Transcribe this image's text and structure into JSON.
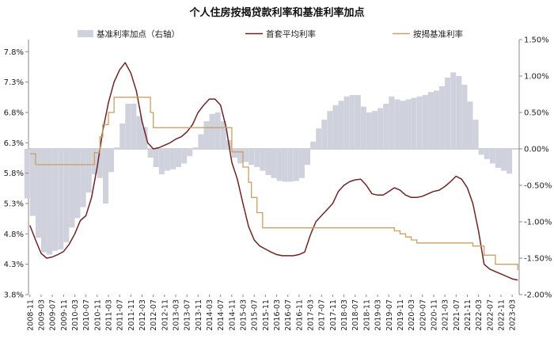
{
  "chart_data": {
    "type": "bar+line",
    "title": "个人住房按揭贷款利率和基准利率加点",
    "legend": {
      "placement": "top",
      "entries": [
        {
          "name": "基准利率加点（右轴）",
          "color": "#cfd2dd"
        },
        {
          "name": "首套平均利率",
          "color": "#6e2423"
        },
        {
          "name": "按揭基准利率",
          "color": "#c8a063"
        }
      ]
    },
    "y_left": {
      "range": [
        3.8,
        8.0
      ],
      "ticks": [
        "3.8%",
        "4.3%",
        "4.8%",
        "5.3%",
        "5.8%",
        "6.3%",
        "6.8%",
        "7.3%",
        "7.8%"
      ]
    },
    "y_right": {
      "range": [
        -2.0,
        1.5
      ],
      "ticks": [
        "-2.00%",
        "-1.50%",
        "-1.00%",
        "-0.50%",
        "0.00%",
        "0.50%",
        "1.00%",
        "1.50%"
      ]
    },
    "x_ticks": [
      "2008-11",
      "2009-03",
      "2009-07",
      "2009-11",
      "2010-03",
      "2010-07",
      "2010-11",
      "2011-03",
      "2011-07",
      "2011-11",
      "2012-03",
      "2012-07",
      "2012-11",
      "2013-03",
      "2013-07",
      "2013-11",
      "2014-03",
      "2014-07",
      "2014-11",
      "2015-03",
      "2015-07",
      "2015-11",
      "2016-03",
      "2016-07",
      "2016-11",
      "2017-03",
      "2017-07",
      "2017-11",
      "2018-03",
      "2018-07",
      "2018-11",
      "2019-03",
      "2019-07",
      "2019-11",
      "2020-03",
      "2020-07",
      "2020-11",
      "2021-03",
      "2021-07",
      "2021-11",
      "2022-03",
      "2022-07",
      "2022-11",
      "2023-03"
    ],
    "series": [
      {
        "name": "基准利率加点（右轴）",
        "axis": "right",
        "kind": "bar",
        "points": [
          [
            "2008-11",
            -0.68
          ],
          [
            "2009-01",
            -0.92
          ],
          [
            "2009-03",
            -1.22
          ],
          [
            "2009-05",
            -1.42
          ],
          [
            "2009-07",
            -1.45
          ],
          [
            "2009-09",
            -1.4
          ],
          [
            "2009-11",
            -1.38
          ],
          [
            "2010-01",
            -1.28
          ],
          [
            "2010-03",
            -1.08
          ],
          [
            "2010-05",
            -0.95
          ],
          [
            "2010-07",
            -0.8
          ],
          [
            "2010-09",
            -0.6
          ],
          [
            "2010-11",
            -0.35
          ],
          [
            "2011-01",
            -0.4
          ],
          [
            "2011-03",
            -0.75
          ],
          [
            "2011-05",
            -0.32
          ],
          [
            "2011-07",
            0.02
          ],
          [
            "2011-09",
            0.35
          ],
          [
            "2011-11",
            0.62
          ],
          [
            "2012-01",
            0.62
          ],
          [
            "2012-03",
            0.45
          ],
          [
            "2012-05",
            0.3
          ],
          [
            "2012-07",
            -0.12
          ],
          [
            "2012-09",
            -0.25
          ],
          [
            "2012-11",
            -0.35
          ],
          [
            "2013-01",
            -0.3
          ],
          [
            "2013-03",
            -0.28
          ],
          [
            "2013-05",
            -0.25
          ],
          [
            "2013-07",
            -0.2
          ],
          [
            "2013-09",
            -0.1
          ],
          [
            "2013-11",
            0.02
          ],
          [
            "2014-01",
            0.2
          ],
          [
            "2014-03",
            0.38
          ],
          [
            "2014-05",
            0.48
          ],
          [
            "2014-07",
            0.5
          ],
          [
            "2014-09",
            0.38
          ],
          [
            "2014-11",
            0.12
          ],
          [
            "2015-01",
            -0.12
          ],
          [
            "2015-03",
            -0.2
          ],
          [
            "2015-05",
            -0.18
          ],
          [
            "2015-07",
            -0.22
          ],
          [
            "2015-09",
            -0.25
          ],
          [
            "2015-11",
            -0.3
          ],
          [
            "2016-01",
            -0.36
          ],
          [
            "2016-03",
            -0.4
          ],
          [
            "2016-05",
            -0.44
          ],
          [
            "2016-07",
            -0.45
          ],
          [
            "2016-09",
            -0.45
          ],
          [
            "2016-11",
            -0.44
          ],
          [
            "2017-01",
            -0.4
          ],
          [
            "2017-03",
            -0.22
          ],
          [
            "2017-05",
            0.1
          ],
          [
            "2017-07",
            0.28
          ],
          [
            "2017-09",
            0.4
          ],
          [
            "2017-11",
            0.52
          ],
          [
            "2018-01",
            0.6
          ],
          [
            "2018-03",
            0.66
          ],
          [
            "2018-05",
            0.72
          ],
          [
            "2018-07",
            0.74
          ],
          [
            "2018-09",
            0.74
          ],
          [
            "2018-11",
            0.58
          ],
          [
            "2019-01",
            0.5
          ],
          [
            "2019-03",
            0.52
          ],
          [
            "2019-05",
            0.56
          ],
          [
            "2019-07",
            0.62
          ],
          [
            "2019-09",
            0.72
          ],
          [
            "2019-11",
            0.68
          ],
          [
            "2020-01",
            0.66
          ],
          [
            "2020-03",
            0.68
          ],
          [
            "2020-05",
            0.7
          ],
          [
            "2020-07",
            0.72
          ],
          [
            "2020-09",
            0.74
          ],
          [
            "2020-11",
            0.78
          ],
          [
            "2021-01",
            0.8
          ],
          [
            "2021-03",
            0.86
          ],
          [
            "2021-05",
            0.98
          ],
          [
            "2021-07",
            1.05
          ],
          [
            "2021-09",
            1.0
          ],
          [
            "2021-11",
            0.88
          ],
          [
            "2022-01",
            0.65
          ],
          [
            "2022-03",
            0.4
          ],
          [
            "2022-05",
            -0.08
          ],
          [
            "2022-07",
            -0.14
          ],
          [
            "2022-09",
            -0.2
          ],
          [
            "2022-11",
            -0.26
          ],
          [
            "2023-01",
            -0.3
          ],
          [
            "2023-03",
            -0.34
          ]
        ]
      },
      {
        "name": "首套平均利率",
        "axis": "left",
        "kind": "line",
        "points": [
          [
            "2008-11",
            4.94
          ],
          [
            "2009-01",
            4.7
          ],
          [
            "2009-03",
            4.48
          ],
          [
            "2009-05",
            4.4
          ],
          [
            "2009-07",
            4.42
          ],
          [
            "2009-09",
            4.46
          ],
          [
            "2009-11",
            4.51
          ],
          [
            "2010-01",
            4.63
          ],
          [
            "2010-03",
            4.8
          ],
          [
            "2010-05",
            5.02
          ],
          [
            "2010-07",
            5.1
          ],
          [
            "2010-09",
            5.4
          ],
          [
            "2010-11",
            5.9
          ],
          [
            "2011-01",
            6.5
          ],
          [
            "2011-03",
            6.96
          ],
          [
            "2011-05",
            7.3
          ],
          [
            "2011-07",
            7.5
          ],
          [
            "2011-09",
            7.62
          ],
          [
            "2011-11",
            7.45
          ],
          [
            "2012-01",
            7.15
          ],
          [
            "2012-03",
            6.65
          ],
          [
            "2012-05",
            6.3
          ],
          [
            "2012-07",
            6.2
          ],
          [
            "2012-09",
            6.22
          ],
          [
            "2012-11",
            6.26
          ],
          [
            "2013-01",
            6.3
          ],
          [
            "2013-03",
            6.36
          ],
          [
            "2013-05",
            6.4
          ],
          [
            "2013-07",
            6.48
          ],
          [
            "2013-09",
            6.6
          ],
          [
            "2013-11",
            6.8
          ],
          [
            "2014-01",
            6.92
          ],
          [
            "2014-03",
            7.02
          ],
          [
            "2014-05",
            7.02
          ],
          [
            "2014-07",
            6.92
          ],
          [
            "2014-09",
            6.55
          ],
          [
            "2014-11",
            5.98
          ],
          [
            "2015-01",
            5.7
          ],
          [
            "2015-03",
            5.3
          ],
          [
            "2015-05",
            4.92
          ],
          [
            "2015-07",
            4.7
          ],
          [
            "2015-09",
            4.6
          ],
          [
            "2015-11",
            4.55
          ],
          [
            "2016-01",
            4.5
          ],
          [
            "2016-03",
            4.46
          ],
          [
            "2016-05",
            4.44
          ],
          [
            "2016-07",
            4.44
          ],
          [
            "2016-09",
            4.44
          ],
          [
            "2016-11",
            4.46
          ],
          [
            "2017-01",
            4.5
          ],
          [
            "2017-03",
            4.78
          ],
          [
            "2017-05",
            5.0
          ],
          [
            "2017-07",
            5.1
          ],
          [
            "2017-09",
            5.2
          ],
          [
            "2017-11",
            5.3
          ],
          [
            "2018-01",
            5.5
          ],
          [
            "2018-03",
            5.6
          ],
          [
            "2018-05",
            5.66
          ],
          [
            "2018-07",
            5.69
          ],
          [
            "2018-09",
            5.7
          ],
          [
            "2018-11",
            5.6
          ],
          [
            "2019-01",
            5.46
          ],
          [
            "2019-03",
            5.44
          ],
          [
            "2019-05",
            5.44
          ],
          [
            "2019-07",
            5.5
          ],
          [
            "2019-09",
            5.56
          ],
          [
            "2019-11",
            5.52
          ],
          [
            "2020-01",
            5.44
          ],
          [
            "2020-03",
            5.4
          ],
          [
            "2020-05",
            5.4
          ],
          [
            "2020-07",
            5.42
          ],
          [
            "2020-09",
            5.46
          ],
          [
            "2020-11",
            5.5
          ],
          [
            "2021-01",
            5.52
          ],
          [
            "2021-03",
            5.58
          ],
          [
            "2021-05",
            5.66
          ],
          [
            "2021-07",
            5.75
          ],
          [
            "2021-09",
            5.7
          ],
          [
            "2021-11",
            5.56
          ],
          [
            "2022-01",
            5.3
          ],
          [
            "2022-03",
            4.85
          ],
          [
            "2022-05",
            4.3
          ],
          [
            "2022-07",
            4.22
          ],
          [
            "2022-09",
            4.18
          ],
          [
            "2022-11",
            4.14
          ],
          [
            "2023-01",
            4.1
          ],
          [
            "2023-03",
            4.06
          ],
          [
            "2023-05",
            4.04
          ]
        ]
      },
      {
        "name": "按揭基准利率",
        "axis": "left",
        "kind": "line",
        "points": [
          [
            "2008-11",
            6.12
          ],
          [
            "2009-01",
            5.94
          ],
          [
            "2009-05",
            5.94
          ],
          [
            "2010-07",
            5.94
          ],
          [
            "2010-10",
            6.14
          ],
          [
            "2010-12",
            6.4
          ],
          [
            "2011-01",
            6.6
          ],
          [
            "2011-03",
            6.8
          ],
          [
            "2011-05",
            7.05
          ],
          [
            "2011-07",
            7.05
          ],
          [
            "2011-09",
            7.05
          ],
          [
            "2012-05",
            7.05
          ],
          [
            "2012-06",
            6.8
          ],
          [
            "2012-07",
            6.55
          ],
          [
            "2014-10",
            6.55
          ],
          [
            "2014-11",
            6.15
          ],
          [
            "2015-03",
            5.9
          ],
          [
            "2015-05",
            5.65
          ],
          [
            "2015-06",
            5.4
          ],
          [
            "2015-08",
            5.15
          ],
          [
            "2015-10",
            4.9
          ],
          [
            "2019-07",
            4.9
          ],
          [
            "2019-09",
            4.85
          ],
          [
            "2019-11",
            4.8
          ],
          [
            "2020-01",
            4.75
          ],
          [
            "2020-03",
            4.7
          ],
          [
            "2020-05",
            4.65
          ],
          [
            "2022-01",
            4.6
          ],
          [
            "2022-05",
            4.45
          ],
          [
            "2022-09",
            4.3
          ],
          [
            "2023-03",
            4.3
          ],
          [
            "2023-05",
            4.2
          ]
        ]
      }
    ]
  }
}
